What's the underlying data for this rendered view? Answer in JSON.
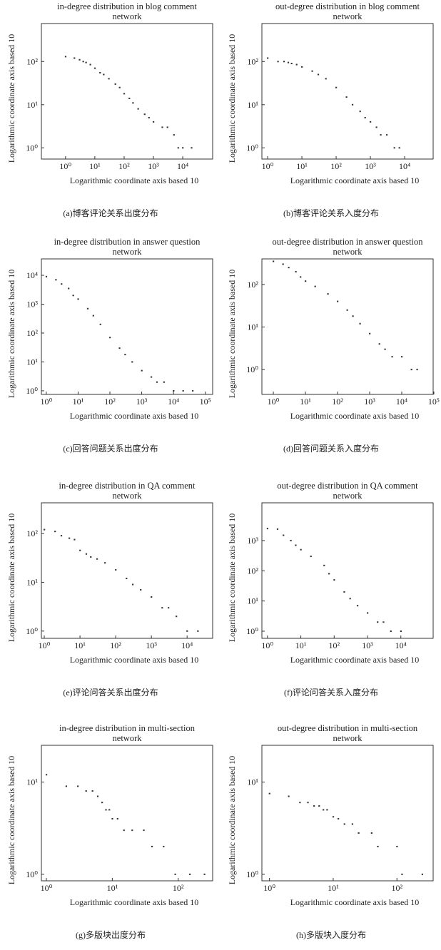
{
  "chart_data": [
    {
      "type": "scatter",
      "title": "in-degree distribution in blog comment network",
      "x_label": "Logarithmic coordinate axis based 10",
      "y_label": "Logarithmic coordinate axis based 10",
      "caption": "(a)博客评论关系出度分布",
      "color": "#333333",
      "log_x": true,
      "log_y": true,
      "xlim": [
        0.15,
        105000
      ],
      "ylim": [
        0.55,
        760
      ],
      "xticks": [
        {
          "value": 1,
          "label": "10⁰"
        },
        {
          "value": 10,
          "label": "10¹"
        },
        {
          "value": 100,
          "label": "10²"
        },
        {
          "value": 1000,
          "label": "10³"
        },
        {
          "value": 10000,
          "label": "10⁴"
        }
      ],
      "yticks": [
        {
          "value": 1,
          "label": "10⁰"
        },
        {
          "value": 10,
          "label": "10¹"
        },
        {
          "value": 100,
          "label": "10²"
        }
      ],
      "x": [
        1,
        2,
        3,
        4,
        5,
        7,
        10,
        15,
        20,
        30,
        50,
        70,
        100,
        150,
        200,
        300,
        500,
        700,
        1000,
        2000,
        3000,
        5000,
        7000,
        10000,
        20000
      ],
      "values": [
        130,
        120,
        110,
        100,
        95,
        85,
        70,
        55,
        50,
        40,
        30,
        25,
        18,
        14,
        11,
        8,
        6,
        5,
        4,
        3,
        3,
        2,
        1,
        1,
        1
      ]
    },
    {
      "type": "scatter",
      "title": "out-degree distribution in blog comment network",
      "x_label": "Logarithmic coordinate axis based 10",
      "y_label": "Logarithmic coordinate axis based 10",
      "caption": "(b)博客评论关系入度分布",
      "color": "#333333",
      "log_x": true,
      "log_y": true,
      "xlim": [
        0.68,
        68000
      ],
      "ylim": [
        0.55,
        760
      ],
      "xticks": [
        {
          "value": 1,
          "label": "10⁰"
        },
        {
          "value": 10,
          "label": "10¹"
        },
        {
          "value": 100,
          "label": "10²"
        },
        {
          "value": 1000,
          "label": "10³"
        },
        {
          "value": 10000,
          "label": "10⁴"
        }
      ],
      "yticks": [
        {
          "value": 1,
          "label": "10⁰"
        },
        {
          "value": 10,
          "label": "10¹"
        },
        {
          "value": 100,
          "label": "10²"
        }
      ],
      "x": [
        1,
        2,
        3,
        4,
        5,
        7,
        10,
        20,
        30,
        50,
        100,
        200,
        300,
        500,
        700,
        1000,
        1500,
        2000,
        3000,
        5000,
        7000
      ],
      "values": [
        120,
        100,
        100,
        95,
        90,
        85,
        75,
        60,
        50,
        40,
        25,
        15,
        10,
        7,
        5,
        4,
        3,
        2,
        2,
        1,
        1
      ]
    },
    {
      "type": "scatter",
      "title": "in-degree distribution in answer question network",
      "x_label": "Logarithmic coordinate axis based 10",
      "y_label": "Logarithmic coordinate axis based 10",
      "caption": "(c)回答问题关系出度分布",
      "color": "#333333",
      "log_x": true,
      "log_y": true,
      "xlim": [
        0.7,
        170000
      ],
      "ylim": [
        0.75,
        37000
      ],
      "xticks": [
        {
          "value": 1,
          "label": "10⁰"
        },
        {
          "value": 10,
          "label": "10¹"
        },
        {
          "value": 100,
          "label": "10²"
        },
        {
          "value": 1000,
          "label": "10³"
        },
        {
          "value": 10000,
          "label": "10⁴"
        },
        {
          "value": 100000,
          "label": "10⁵"
        }
      ],
      "yticks": [
        {
          "value": 1,
          "label": "10⁰"
        },
        {
          "value": 10,
          "label": "10¹"
        },
        {
          "value": 100,
          "label": "10²"
        },
        {
          "value": 1000,
          "label": "10³"
        },
        {
          "value": 10000,
          "label": "10⁴"
        }
      ],
      "x": [
        1,
        2,
        3,
        5,
        7,
        10,
        20,
        30,
        50,
        100,
        200,
        300,
        500,
        1000,
        2000,
        3000,
        5000,
        10000,
        20000,
        40000
      ],
      "values": [
        9000,
        7000,
        5000,
        3500,
        2000,
        1500,
        700,
        400,
        200,
        70,
        30,
        18,
        10,
        5,
        3,
        2,
        2,
        1,
        1,
        1
      ]
    },
    {
      "type": "scatter",
      "title": "out-degree distribution in answer question network",
      "x_label": "Logarithmic coordinate axis based 10",
      "y_label": "Logarithmic coordinate axis based 10",
      "caption": "(d)回答问题关系入度分布",
      "color": "#333333",
      "log_x": true,
      "log_y": true,
      "xlim": [
        0.44,
        95000
      ],
      "ylim": [
        0.26,
        400
      ],
      "xticks": [
        {
          "value": 1,
          "label": "10⁰"
        },
        {
          "value": 10,
          "label": "10¹"
        },
        {
          "value": 100,
          "label": "10²"
        },
        {
          "value": 1000,
          "label": "10³"
        },
        {
          "value": 10000,
          "label": "10⁴"
        },
        {
          "value": 100000,
          "label": "10⁵"
        }
      ],
      "yticks": [
        {
          "value": 1,
          "label": "10⁰"
        },
        {
          "value": 10,
          "label": "10¹"
        },
        {
          "value": 100,
          "label": "10²"
        }
      ],
      "x": [
        1,
        2,
        3,
        5,
        7,
        10,
        20,
        50,
        100,
        200,
        300,
        500,
        1000,
        2000,
        3000,
        5000,
        10000,
        20000,
        30000
      ],
      "values": [
        350,
        300,
        250,
        200,
        150,
        120,
        90,
        60,
        40,
        25,
        18,
        12,
        7,
        4,
        3,
        2,
        2,
        1,
        1
      ]
    },
    {
      "type": "scatter",
      "title": "in-degree distribution in QA comment network",
      "x_label": "Logarithmic coordinate axis based 10",
      "y_label": "Logarithmic coordinate axis based 10",
      "caption": "(e)评论问答关系出度分布",
      "color": "#333333",
      "log_x": true,
      "log_y": true,
      "xlim": [
        0.83,
        52000
      ],
      "ylim": [
        0.71,
        425
      ],
      "xticks": [
        {
          "value": 1,
          "label": "10⁰"
        },
        {
          "value": 10,
          "label": "10¹"
        },
        {
          "value": 100,
          "label": "10²"
        },
        {
          "value": 1000,
          "label": "10³"
        },
        {
          "value": 10000,
          "label": "10⁴"
        }
      ],
      "yticks": [
        {
          "value": 1,
          "label": "10⁰"
        },
        {
          "value": 10,
          "label": "10¹"
        },
        {
          "value": 100,
          "label": "10²"
        }
      ],
      "x": [
        1,
        2,
        3,
        5,
        7,
        10,
        15,
        20,
        30,
        50,
        100,
        200,
        300,
        500,
        1000,
        2000,
        3000,
        5000,
        10000,
        20000
      ],
      "values": [
        120,
        110,
        90,
        80,
        75,
        45,
        38,
        33,
        30,
        25,
        18,
        12,
        9,
        7,
        5,
        3,
        3,
        2,
        1,
        1
      ]
    },
    {
      "type": "scatter",
      "title": "out-degree distribution in QA comment network",
      "x_label": "Logarithmic coordinate axis based 10",
      "y_label": "Logarithmic coordinate axis based 10",
      "caption": "(f)评论问答关系入度分布",
      "color": "#333333",
      "log_x": true,
      "log_y": true,
      "xlim": [
        0.68,
        93000
      ],
      "ylim": [
        0.58,
        17800
      ],
      "xticks": [
        {
          "value": 1,
          "label": "10⁰"
        },
        {
          "value": 10,
          "label": "10¹"
        },
        {
          "value": 100,
          "label": "10²"
        },
        {
          "value": 1000,
          "label": "10³"
        },
        {
          "value": 10000,
          "label": "10⁴"
        }
      ],
      "yticks": [
        {
          "value": 1,
          "label": "10⁰"
        },
        {
          "value": 10,
          "label": "10¹"
        },
        {
          "value": 100,
          "label": "10²"
        },
        {
          "value": 1000,
          "label": "10³"
        }
      ],
      "x": [
        1,
        2,
        3,
        5,
        7,
        10,
        20,
        50,
        70,
        100,
        200,
        300,
        500,
        1000,
        2000,
        3000,
        5000,
        10000
      ],
      "values": [
        2500,
        2400,
        1500,
        1000,
        700,
        500,
        300,
        150,
        80,
        50,
        20,
        12,
        7,
        4,
        2,
        2,
        1,
        1
      ]
    },
    {
      "type": "scatter",
      "title": "in-degree distribution in multi-section network",
      "x_label": "Logarithmic coordinate axis based 10",
      "y_label": "Logarithmic coordinate axis based 10",
      "caption": "(g)多版块出度分布",
      "color": "#333333",
      "log_x": true,
      "log_y": true,
      "xlim": [
        0.84,
        333
      ],
      "ylim": [
        0.85,
        25
      ],
      "xticks": [
        {
          "value": 1,
          "label": "10⁰"
        },
        {
          "value": 10,
          "label": "10¹"
        },
        {
          "value": 100,
          "label": "10²"
        }
      ],
      "yticks": [
        {
          "value": 1,
          "label": "10⁰"
        },
        {
          "value": 10,
          "label": "10¹"
        }
      ],
      "x": [
        1,
        2,
        3,
        4,
        5,
        6,
        7,
        8,
        9,
        10,
        12,
        15,
        20,
        30,
        40,
        60,
        90,
        150,
        250
      ],
      "values": [
        12,
        9,
        9,
        8,
        8,
        7,
        6,
        5,
        5,
        4,
        4,
        3,
        3,
        3,
        2,
        2,
        1,
        1,
        1
      ]
    },
    {
      "type": "scatter",
      "title": "out-degree distribution in multi-section network",
      "x_label": "Logarithmic coordinate axis based 10",
      "y_label": "Logarithmic coordinate axis based 10",
      "caption": "(h)多版块入度分布",
      "color": "#333333",
      "log_x": true,
      "log_y": true,
      "xlim": [
        0.76,
        370
      ],
      "ylim": [
        0.85,
        25
      ],
      "xticks": [
        {
          "value": 1,
          "label": "10⁰"
        },
        {
          "value": 10,
          "label": "10¹"
        },
        {
          "value": 100,
          "label": "10²"
        }
      ],
      "yticks": [
        {
          "value": 1,
          "label": "10⁰"
        },
        {
          "value": 10,
          "label": "10¹"
        }
      ],
      "x": [
        1,
        2,
        3,
        4,
        5,
        6,
        7,
        8,
        10,
        12,
        15,
        20,
        25,
        40,
        50,
        100,
        120,
        250
      ],
      "values": [
        7.5,
        7,
        6,
        6,
        5.5,
        5.5,
        5,
        5,
        4.2,
        4,
        3.5,
        3.5,
        2.8,
        2.8,
        2,
        2,
        1,
        1
      ]
    }
  ]
}
